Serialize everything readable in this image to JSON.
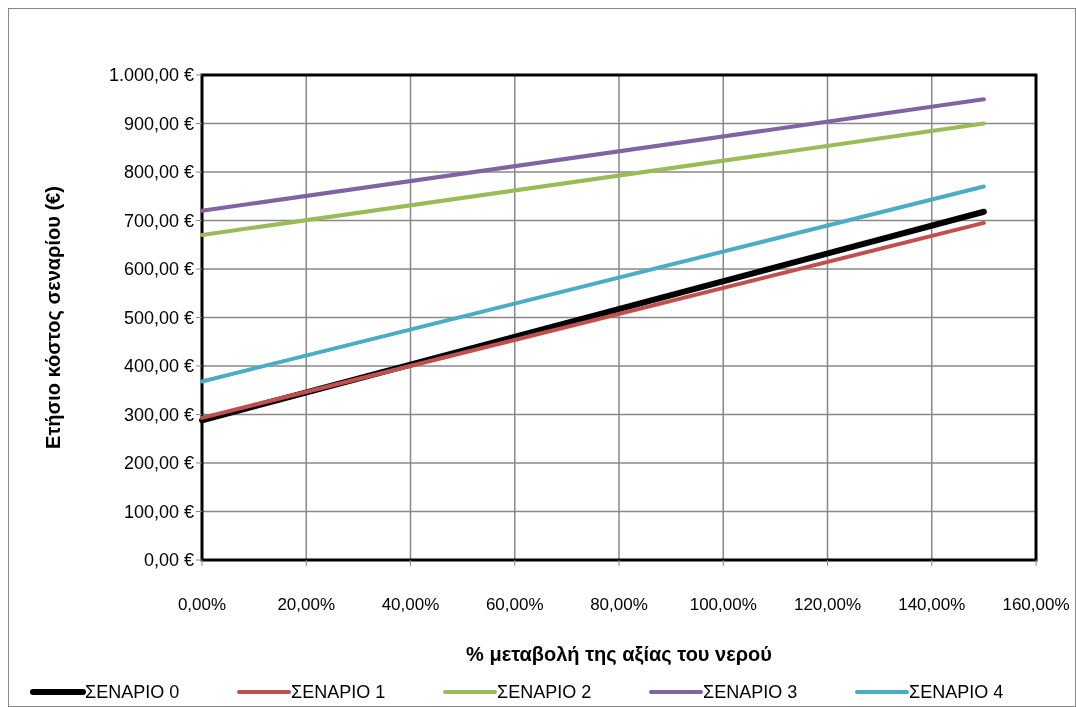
{
  "chart_data": {
    "type": "line",
    "xlabel": "% μεταβολή της αξίας του νερού",
    "ylabel": "Ετήσιο κόστος σεναρίου (€)",
    "x": [
      0,
      150
    ],
    "series": [
      {
        "name": "ΣΕΝΑΡΙΟ 0",
        "color": "#000000",
        "values": [
          288,
          718
        ]
      },
      {
        "name": "ΣΕΝΑΡΙΟ 1",
        "color": "#c0504d",
        "values": [
          293,
          695
        ]
      },
      {
        "name": "ΣΕΝΑΡΙΟ 2",
        "color": "#9bbb59",
        "values": [
          670,
          900
        ]
      },
      {
        "name": "ΣΕΝΑΡΙΟ 3",
        "color": "#8064a2",
        "values": [
          720,
          950
        ]
      },
      {
        "name": "ΣΕΝΑΡΙΟ 4",
        "color": "#4bacc6",
        "values": [
          368,
          770
        ]
      }
    ],
    "xlim": [
      0,
      160
    ],
    "xticks": [
      {
        "value": 0,
        "label": "0,00%"
      },
      {
        "value": 20,
        "label": "20,00%"
      },
      {
        "value": 40,
        "label": "40,00%"
      },
      {
        "value": 60,
        "label": "60,00%"
      },
      {
        "value": 80,
        "label": "80,00%"
      },
      {
        "value": 100,
        "label": "100,00%"
      },
      {
        "value": 120,
        "label": "120,00%"
      },
      {
        "value": 140,
        "label": "140,00%"
      },
      {
        "value": 160,
        "label": "160,00%"
      }
    ],
    "ylim": [
      0,
      1000
    ],
    "yticks": [
      {
        "value": 0,
        "label": "0,00 €"
      },
      {
        "value": 100,
        "label": "100,00 €"
      },
      {
        "value": 200,
        "label": "200,00 €"
      },
      {
        "value": 300,
        "label": "300,00 €"
      },
      {
        "value": 400,
        "label": "400,00 €"
      },
      {
        "value": 500,
        "label": "500,00 €"
      },
      {
        "value": 600,
        "label": "600,00 €"
      },
      {
        "value": 700,
        "label": "700,00 €"
      },
      {
        "value": 800,
        "label": "800,00 €"
      },
      {
        "value": 900,
        "label": "900,00 €"
      },
      {
        "value": 1000,
        "label": "1.000,00 €"
      }
    ],
    "grid": true,
    "legend": "bottom",
    "marker": "none",
    "line_style": "solid"
  }
}
